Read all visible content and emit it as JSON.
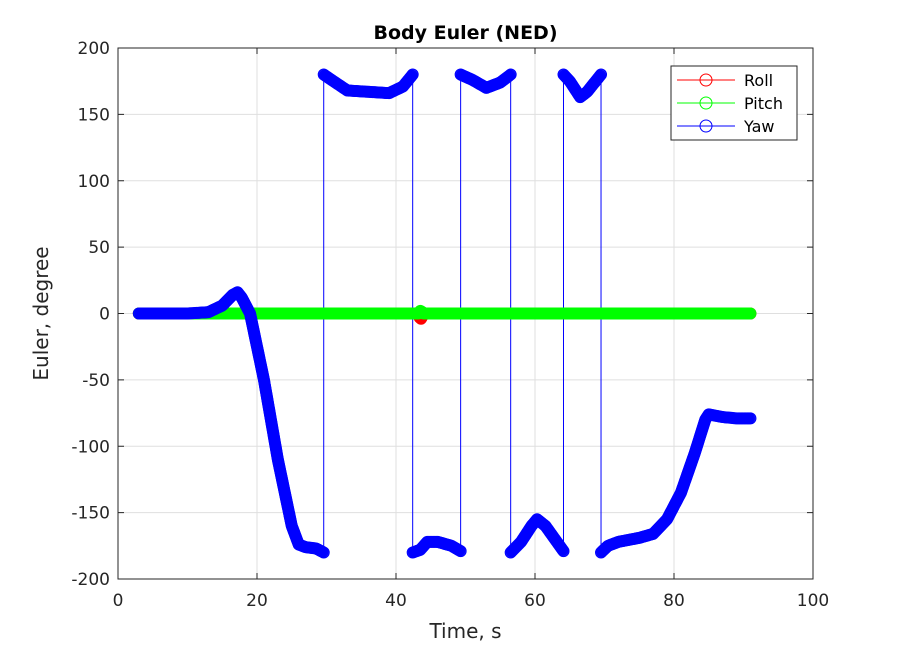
{
  "chart_data": {
    "type": "scatter",
    "title": "Body Euler (NED)",
    "xlabel": "Time, s",
    "ylabel": "Euler, degree",
    "xlim": [
      0,
      100
    ],
    "ylim": [
      -200,
      200
    ],
    "xticks": [
      0,
      20,
      40,
      60,
      80,
      100
    ],
    "yticks": [
      -200,
      -150,
      -100,
      -50,
      0,
      50,
      100,
      150,
      200
    ],
    "xtick_labels": [
      "0",
      "20",
      "40",
      "60",
      "80",
      "100"
    ],
    "ytick_labels": [
      "-200",
      "-150",
      "-100",
      "-50",
      "0",
      "50",
      "100",
      "150",
      "200"
    ],
    "grid": true,
    "legend_position": "top-right",
    "series": [
      {
        "name": "Roll",
        "color": "#ff0000",
        "marker": "circle",
        "points": [
          [
            3,
            0
          ],
          [
            43.2,
            0
          ],
          [
            43.4,
            -3
          ],
          [
            43.6,
            -4
          ],
          [
            43.8,
            -2
          ],
          [
            44,
            0
          ],
          [
            91,
            0
          ]
        ]
      },
      {
        "name": "Pitch",
        "color": "#00ff00",
        "marker": "circle",
        "points": [
          [
            3,
            0
          ],
          [
            43.2,
            0
          ],
          [
            43.5,
            2
          ],
          [
            43.8,
            1
          ],
          [
            44,
            0
          ],
          [
            91,
            0
          ]
        ]
      },
      {
        "name": "Yaw",
        "color": "#0000ff",
        "marker": "circle",
        "points": [
          [
            3,
            0
          ],
          [
            10,
            0
          ],
          [
            13,
            1
          ],
          [
            15,
            6
          ],
          [
            16.5,
            14
          ],
          [
            17.2,
            16
          ],
          [
            17.8,
            12
          ],
          [
            19,
            0
          ],
          [
            21,
            -50
          ],
          [
            23,
            -110
          ],
          [
            25,
            -160
          ],
          [
            26,
            -174
          ],
          [
            27,
            -176
          ],
          [
            28.5,
            -177
          ],
          [
            29.6,
            -180
          ],
          [
            29.6,
            180
          ],
          [
            31,
            175
          ],
          [
            33,
            168
          ],
          [
            36,
            167
          ],
          [
            39,
            166
          ],
          [
            41,
            171
          ],
          [
            42.4,
            180
          ],
          [
            42.4,
            -180
          ],
          [
            43.5,
            -178
          ],
          [
            44.5,
            -172
          ],
          [
            46,
            -172
          ],
          [
            48,
            -175
          ],
          [
            49.3,
            -179
          ],
          [
            49.3,
            180
          ],
          [
            51,
            176
          ],
          [
            53,
            170
          ],
          [
            55,
            174
          ],
          [
            56.5,
            180
          ],
          [
            56.5,
            -180
          ],
          [
            58,
            -172
          ],
          [
            59.5,
            -160
          ],
          [
            60.3,
            -155
          ],
          [
            61.5,
            -160
          ],
          [
            63,
            -171
          ],
          [
            64.1,
            -179
          ],
          [
            64.1,
            180
          ],
          [
            65,
            175
          ],
          [
            66.5,
            163
          ],
          [
            67.5,
            167
          ],
          [
            69.5,
            180
          ],
          [
            69.5,
            -180
          ],
          [
            70.5,
            -175
          ],
          [
            72,
            -172
          ],
          [
            75,
            -169
          ],
          [
            77,
            -166
          ],
          [
            79,
            -155
          ],
          [
            81,
            -135
          ],
          [
            83,
            -105
          ],
          [
            84.5,
            -80
          ],
          [
            85,
            -76
          ],
          [
            87,
            -78
          ],
          [
            89,
            -79
          ],
          [
            91,
            -79
          ]
        ],
        "wraps": [
          [
            [
              29.6,
              -180
            ],
            [
              29.6,
              180
            ]
          ],
          [
            [
              42.4,
              180
            ],
            [
              42.4,
              -180
            ]
          ],
          [
            [
              49.3,
              -179
            ],
            [
              49.3,
              180
            ]
          ],
          [
            [
              56.5,
              180
            ],
            [
              56.5,
              -180
            ]
          ],
          [
            [
              64.1,
              -179
            ],
            [
              64.1,
              180
            ]
          ],
          [
            [
              69.5,
              180
            ],
            [
              69.5,
              -180
            ]
          ]
        ]
      }
    ]
  }
}
